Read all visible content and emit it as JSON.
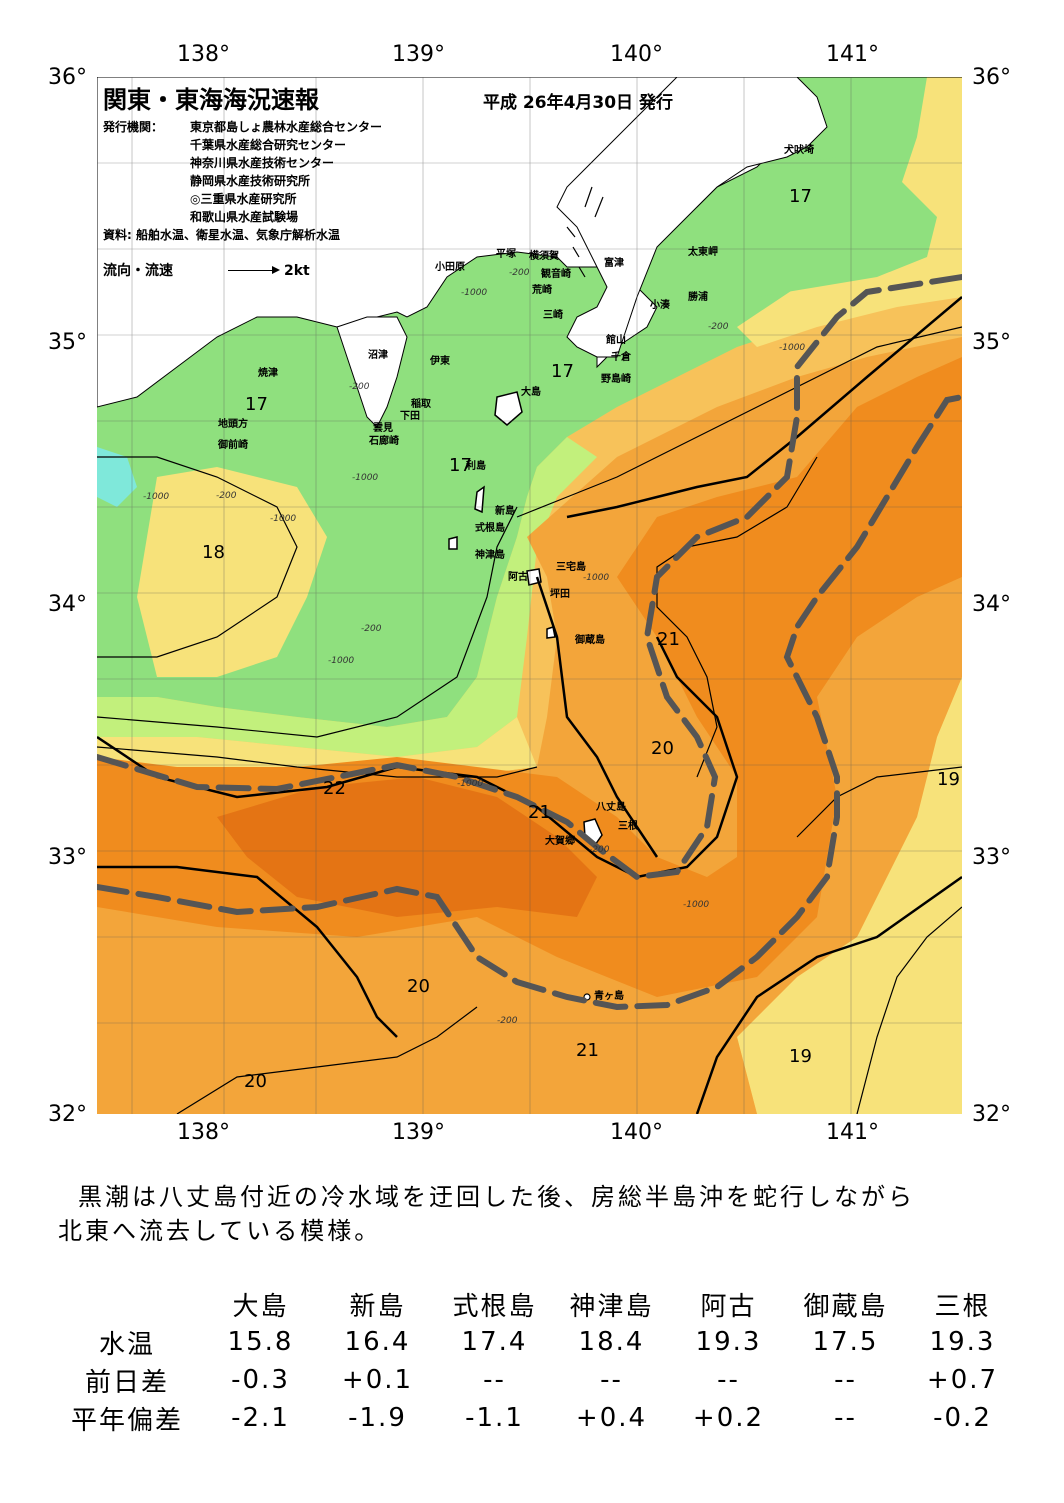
{
  "map": {
    "title": "関東・東海海況速報",
    "issue_date": "平成 26年4月30日 発行",
    "agency_label": "発行機関：",
    "agencies": [
      "東京都島しょ農林水産総合センター",
      "千葉県水産総合研究センター",
      "神奈川県水産技術センター",
      "静岡県水産技術研究所",
      "◎三重県水産研究所",
      "和歌山県水産試験場"
    ],
    "source": "資料: 船舶水温、衛星水温、気象庁解析水温",
    "legend_label": "流向・流速",
    "legend_scale": "2kt",
    "lon_labels": [
      "138°",
      "139°",
      "140°",
      "141°"
    ],
    "lat_labels": [
      "36°",
      "35°",
      "34°",
      "33°",
      "32°"
    ],
    "places": [
      "犬吠埼",
      "太東岬",
      "勝浦",
      "小湊",
      "富津",
      "横須賀",
      "観音崎",
      "平塚",
      "小田原",
      "荒崎",
      "三崎",
      "館山",
      "千倉",
      "野島崎",
      "沼津",
      "伊東",
      "焼津",
      "稲取",
      "下田",
      "雲見",
      "石廊崎",
      "地頭方",
      "御前崎",
      "大島",
      "利島",
      "新島",
      "式根島",
      "神津島",
      "三宅島",
      "阿古",
      "坪田",
      "御蔵島",
      "八丈島",
      "三根",
      "大賀郷",
      "青ヶ島"
    ],
    "isotherm_labels": [
      "17",
      "17",
      "17",
      "17",
      "18",
      "21",
      "20",
      "22",
      "21",
      "19",
      "20",
      "21",
      "19",
      "20"
    ],
    "depth_labels": [
      "-200",
      "-1000",
      "-200",
      "-1000",
      "-200",
      "-1000",
      "-200",
      "-1000",
      "-1000",
      "-200",
      "-1000",
      "-1000",
      "-200",
      "-1000",
      "-1000",
      "-200"
    ],
    "colors": {
      "green": "#8fe07e",
      "light_green": "#c2f07c",
      "yellow": "#f7e27a",
      "light_orange": "#f7c25a",
      "orange": "#f3a53a",
      "dark_orange": "#f08c1e",
      "deep": "#e47414",
      "cyan": "#7fe8da",
      "land": "#ffffff"
    }
  },
  "summary": [
    "黒潮は八丈島付近の冷水域を迂回した後、房総半島沖を蛇行しながら",
    "北東へ流去している模様。"
  ],
  "table": {
    "columns": [
      "大島",
      "新島",
      "式根島",
      "神津島",
      "阿古",
      "御蔵島",
      "三根"
    ],
    "rows": [
      {
        "label": "水温",
        "values": [
          "15.8",
          "16.4",
          "17.4",
          "18.4",
          "19.3",
          "17.5",
          "19.3"
        ]
      },
      {
        "label": "前日差",
        "values": [
          "-0.3",
          "+0.1",
          "--",
          "--",
          "--",
          "--",
          "+0.7"
        ]
      },
      {
        "label": "平年偏差",
        "values": [
          "-2.1",
          "-1.9",
          "-1.1",
          "+0.4",
          "+0.2",
          "--",
          "-0.2"
        ]
      }
    ]
  }
}
